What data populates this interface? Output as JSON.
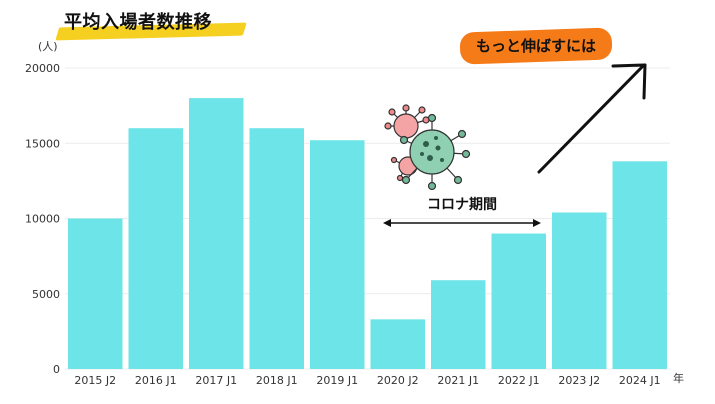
{
  "title": "平均入場者数推移",
  "unit_y": "(人)",
  "unit_x": "年",
  "callout": "もっと伸ばすには",
  "annotation": "コロナ期間",
  "icons": {
    "virus": "virus-icon",
    "arrow": "up-right-arrow-icon"
  },
  "colors": {
    "bar": "#6ce4e8",
    "callout": "#f57a18",
    "title_highlight": "#f5d020"
  },
  "chart_data": {
    "type": "bar",
    "title": "平均入場者数推移",
    "xlabel": "年",
    "ylabel": "(人)",
    "categories": [
      "2015 J2",
      "2016 J1",
      "2017 J1",
      "2018 J1",
      "2019 J1",
      "2020 J2",
      "2021 J1",
      "2022 J1",
      "2023 J2",
      "2024 J1"
    ],
    "values": [
      10000,
      16000,
      18000,
      16000,
      15200,
      3300,
      5900,
      9000,
      10400,
      13800
    ],
    "ylim": [
      0,
      20000
    ],
    "yticks": [
      "0",
      "5000",
      "10000",
      "15000",
      "20000"
    ],
    "grid": true
  }
}
